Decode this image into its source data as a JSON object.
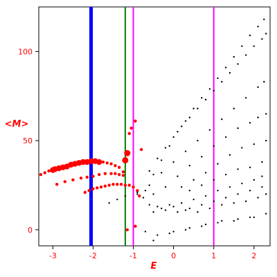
{
  "chart_data": {
    "type": "scatter",
    "title": "",
    "xlabel": "E",
    "ylabel": "<M>",
    "xlim": [
      -3.35,
      2.4
    ],
    "ylim": [
      -9,
      125
    ],
    "grid": false,
    "x_ticks": [
      "-3",
      "-2",
      "-1",
      "0",
      "1",
      "2"
    ],
    "y_ticks": [
      "0",
      "50",
      "100"
    ],
    "x_tick_values": [
      -3,
      -2,
      -1,
      0,
      1,
      2
    ],
    "y_tick_values": [
      0,
      50,
      100
    ],
    "axis_color": "#000000",
    "label_color": "#ff0000",
    "vertical_lines": [
      {
        "x": -2.05,
        "color": "#0000ff"
      },
      {
        "x": -1.2,
        "color": "#008000"
      },
      {
        "x": -1.0,
        "color": "#ff00ff"
      },
      {
        "x": 1.0,
        "color": "#ff00ff"
      }
    ],
    "series": [
      {
        "color": "#ff0000",
        "marker": "large-dot",
        "points": [
          [
            -3.3,
            31.0
          ],
          [
            -3.2,
            32.0
          ],
          [
            -3.1,
            33.0
          ],
          [
            -3.0,
            33.5
          ],
          [
            -2.95,
            34.0
          ],
          [
            -2.85,
            34.5
          ],
          [
            -2.75,
            35.0
          ],
          [
            -2.65,
            35.5
          ],
          [
            -2.55,
            36.5
          ],
          [
            -2.45,
            37.0
          ],
          [
            -2.35,
            37.5
          ],
          [
            -2.25,
            38.0
          ],
          [
            -2.15,
            38.0
          ],
          [
            -2.05,
            38.5
          ],
          [
            -1.95,
            38.5
          ],
          [
            -1.85,
            38.0
          ],
          [
            -1.75,
            38.0
          ],
          [
            -1.65,
            37.5
          ],
          [
            -1.55,
            37.0
          ],
          [
            -1.45,
            36.0
          ],
          [
            -1.35,
            35.0
          ],
          [
            -1.25,
            32.5
          ],
          [
            -1.2,
            39.0
          ],
          [
            -1.15,
            43.0
          ],
          [
            -1.1,
            54.0
          ],
          [
            -1.05,
            57.0
          ],
          [
            -0.95,
            61.0
          ],
          [
            -2.9,
            25.5
          ],
          [
            -2.7,
            27.0
          ],
          [
            -2.5,
            28.0
          ],
          [
            -2.3,
            29.0
          ],
          [
            -2.15,
            29.5
          ],
          [
            -2.0,
            30.0
          ],
          [
            -1.85,
            31.0
          ],
          [
            -1.7,
            31.5
          ],
          [
            -1.55,
            31.5
          ],
          [
            -1.45,
            31.5
          ],
          [
            -1.35,
            31.0
          ],
          [
            -1.25,
            30.5
          ],
          [
            -2.2,
            21.0
          ],
          [
            -2.1,
            22.0
          ],
          [
            -2.0,
            23.0
          ],
          [
            -1.9,
            23.5
          ],
          [
            -1.8,
            24.0
          ],
          [
            -1.7,
            24.5
          ],
          [
            -1.6,
            25.0
          ],
          [
            -1.5,
            25.5
          ],
          [
            -1.4,
            25.5
          ],
          [
            -1.3,
            25.5
          ],
          [
            -1.2,
            25.0
          ],
          [
            -1.1,
            25.0
          ],
          [
            -1.0,
            24.0
          ],
          [
            -0.9,
            22.0
          ],
          [
            -0.85,
            19.0
          ],
          [
            -1.15,
            0.0
          ],
          [
            -0.95,
            2.0
          ],
          [
            -0.8,
            45.0
          ]
        ]
      },
      {
        "color": "#000000",
        "marker": "small-dot",
        "points": [
          [
            -0.75,
            18.0
          ],
          [
            -0.5,
            31.0
          ],
          [
            -0.3,
            39.0
          ],
          [
            -0.1,
            47.0
          ],
          [
            0.1,
            55.0
          ],
          [
            0.3,
            61.0
          ],
          [
            0.5,
            68.0
          ],
          [
            0.7,
            74.0
          ],
          [
            0.9,
            79.0
          ],
          [
            1.1,
            85.0
          ],
          [
            1.3,
            91.0
          ],
          [
            1.5,
            97.0
          ],
          [
            1.7,
            103.0
          ],
          [
            1.9,
            109.0
          ],
          [
            2.1,
            114.0
          ],
          [
            2.25,
            118.0
          ],
          [
            -0.9,
            20.0
          ],
          [
            -0.6,
            33.0
          ],
          [
            -0.4,
            40.0
          ],
          [
            -0.2,
            46.0
          ],
          [
            0.0,
            52.0
          ],
          [
            0.2,
            58.0
          ],
          [
            0.4,
            63.0
          ],
          [
            0.6,
            68.0
          ],
          [
            0.8,
            73.0
          ],
          [
            1.0,
            78.0
          ],
          [
            1.2,
            83.0
          ],
          [
            1.4,
            88.0
          ],
          [
            1.6,
            93.0
          ],
          [
            1.8,
            98.0
          ],
          [
            2.0,
            103.0
          ],
          [
            2.2,
            107.0
          ],
          [
            2.3,
            110.0
          ],
          [
            -0.6,
            25.0
          ],
          [
            -0.3,
            32.0
          ],
          [
            0.0,
            38.0
          ],
          [
            0.3,
            44.0
          ],
          [
            0.6,
            50.0
          ],
          [
            0.9,
            56.0
          ],
          [
            1.2,
            62.0
          ],
          [
            1.5,
            68.0
          ],
          [
            1.8,
            74.0
          ],
          [
            2.1,
            80.0
          ],
          [
            2.25,
            83.0
          ],
          [
            -0.5,
            20.0
          ],
          [
            -0.2,
            24.0
          ],
          [
            0.1,
            30.0
          ],
          [
            0.4,
            36.0
          ],
          [
            0.7,
            41.0
          ],
          [
            1.0,
            47.0
          ],
          [
            1.3,
            52.0
          ],
          [
            1.6,
            57.0
          ],
          [
            1.9,
            60.0
          ],
          [
            2.1,
            63.0
          ],
          [
            2.3,
            65.0
          ],
          [
            0.2,
            24.0
          ],
          [
            0.5,
            28.0
          ],
          [
            0.8,
            32.0
          ],
          [
            1.1,
            37.0
          ],
          [
            1.4,
            42.0
          ],
          [
            1.7,
            46.0
          ],
          [
            2.0,
            48.0
          ],
          [
            2.3,
            50.0
          ],
          [
            0.4,
            22.0
          ],
          [
            0.7,
            25.0
          ],
          [
            1.0,
            28.0
          ],
          [
            1.3,
            31.0
          ],
          [
            1.6,
            34.0
          ],
          [
            1.9,
            35.0
          ],
          [
            2.2,
            38.0
          ],
          [
            -0.6,
            14.0
          ],
          [
            -0.3,
            12.0
          ],
          [
            0.0,
            13.0
          ],
          [
            0.2,
            15.0
          ],
          [
            0.5,
            17.0
          ],
          [
            0.8,
            19.0
          ],
          [
            1.1,
            22.0
          ],
          [
            1.4,
            24.0
          ],
          [
            1.7,
            26.0
          ],
          [
            2.0,
            28.0
          ],
          [
            2.2,
            30.0
          ],
          [
            -0.5,
            10.0
          ],
          [
            -0.2,
            11.0
          ],
          [
            0.1,
            10.0
          ],
          [
            0.4,
            12.0
          ],
          [
            0.7,
            14.0
          ],
          [
            1.0,
            16.0
          ],
          [
            1.3,
            18.0
          ],
          [
            1.6,
            20.0
          ],
          [
            1.9,
            22.0
          ],
          [
            2.2,
            24.0
          ],
          [
            -0.4,
            13.0
          ],
          [
            -0.1,
            14.0
          ],
          [
            0.3,
            11.0
          ],
          [
            0.6,
            10.0
          ],
          [
            0.9,
            12.0
          ],
          [
            1.2,
            14.0
          ],
          [
            1.5,
            15.0
          ],
          [
            1.8,
            16.0
          ],
          [
            2.1,
            18.0
          ],
          [
            2.3,
            20.0
          ],
          [
            -0.7,
            -1.0
          ],
          [
            -0.4,
            -3.0
          ],
          [
            0.0,
            -1.0
          ],
          [
            0.4,
            1.0
          ],
          [
            0.8,
            3.0
          ],
          [
            1.2,
            5.0
          ],
          [
            1.6,
            6.0
          ],
          [
            2.0,
            7.0
          ],
          [
            2.3,
            9.0
          ],
          [
            -0.5,
            -6.0
          ],
          [
            -0.1,
            -2.0
          ],
          [
            0.3,
            0.0
          ],
          [
            0.7,
            2.0
          ],
          [
            1.1,
            4.0
          ],
          [
            1.5,
            5.0
          ],
          [
            1.9,
            7.0
          ],
          [
            -1.6,
            15.0
          ],
          [
            -1.4,
            17.0
          ],
          [
            -1.2,
            19.0
          ],
          [
            -0.9,
            21.0
          ],
          [
            -0.7,
            22.0
          ]
        ]
      }
    ]
  }
}
